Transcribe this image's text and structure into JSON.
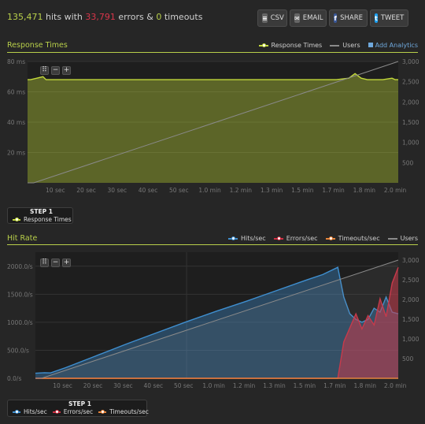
{
  "summary": {
    "hits": "135,471",
    "hits_label": "hits with",
    "errors": "33,791",
    "errors_label": "errors &",
    "timeouts": "0",
    "timeouts_label": "timeouts"
  },
  "toolbar": {
    "csv_label": "CSV",
    "email_label": "EMAIL",
    "share_label": "SHARE",
    "tweet_label": "TWEET"
  },
  "add_analytics_label": "Add Analytics",
  "colors": {
    "accent": "#b8cf4a",
    "response": "#c3d93a",
    "users": "#8a8a8a",
    "hits": "#3f8fd0",
    "errors": "#d02f42",
    "timeouts": "#e8843a"
  },
  "chart_data": [
    {
      "type": "area",
      "title": "Response Times",
      "x_ticks": [
        "10 sec",
        "20 sec",
        "30 sec",
        "40 sec",
        "50 sec",
        "1.0 min",
        "1.2 min",
        "1.3 min",
        "1.5 min",
        "1.7 min",
        "1.8 min",
        "2.0 min"
      ],
      "y_ticks": [
        "80 ms",
        "60 ms",
        "40 ms",
        "20 ms"
      ],
      "y2_ticks": [
        "3,000",
        "2,500",
        "2,000",
        "1,500",
        "1,000",
        "500"
      ],
      "ylim": [
        0,
        80
      ],
      "y2lim": [
        0,
        3000
      ],
      "xlim": [
        0,
        120
      ],
      "series": [
        {
          "name": "Response Times",
          "axis": "left",
          "x": [
            0,
            1,
            3,
            5,
            6,
            8,
            10,
            20,
            30,
            40,
            50,
            60,
            70,
            80,
            90,
            95,
            100,
            104,
            106,
            108,
            110,
            115,
            118,
            119,
            120
          ],
          "y": [
            68,
            68,
            69,
            70,
            68,
            68,
            68,
            68,
            68,
            68,
            68,
            68,
            68,
            68,
            68,
            68,
            68,
            69,
            72,
            69,
            68,
            68,
            69,
            68,
            68
          ]
        },
        {
          "name": "Users",
          "axis": "right",
          "x": [
            0,
            2,
            120
          ],
          "y": [
            0,
            0,
            3000
          ]
        }
      ],
      "step_label": "STEP 1",
      "step_series": [
        "Response Times"
      ]
    },
    {
      "type": "area",
      "title": "Hit Rate",
      "x_ticks": [
        "10 sec",
        "20 sec",
        "30 sec",
        "40 sec",
        "50 sec",
        "1.0 min",
        "1.2 min",
        "1.3 min",
        "1.5 min",
        "1.7 min",
        "1.8 min",
        "2.0 min"
      ],
      "y_ticks": [
        "2000.0/s",
        "1500.0/s",
        "1000.0/s",
        "500.0/s",
        "0.0/s"
      ],
      "y2_ticks": [
        "3,000",
        "2,500",
        "2,000",
        "1,500",
        "1,000",
        "500"
      ],
      "ylim": [
        0,
        2250
      ],
      "y2lim": [
        0,
        3200
      ],
      "xlim": [
        0,
        120
      ],
      "series": [
        {
          "name": "Hits/sec",
          "axis": "left",
          "x": [
            0,
            3,
            5,
            10,
            20,
            30,
            40,
            50,
            60,
            70,
            80,
            90,
            95,
            100,
            102,
            104,
            106,
            108,
            110,
            112,
            114,
            116,
            118,
            120
          ],
          "y": [
            90,
            100,
            95,
            190,
            400,
            610,
            810,
            1010,
            1200,
            1380,
            1570,
            1760,
            1850,
            1980,
            1450,
            1150,
            1050,
            1000,
            1050,
            1250,
            1180,
            1450,
            1180,
            1150
          ]
        },
        {
          "name": "Errors/sec",
          "axis": "left",
          "x": [
            0,
            98,
            100,
            102,
            104,
            106,
            108,
            110,
            112,
            114,
            116,
            118,
            120
          ],
          "y": [
            0,
            0,
            0,
            650,
            900,
            1150,
            880,
            1120,
            950,
            1420,
            1100,
            1700,
            1980
          ]
        },
        {
          "name": "Timeouts/sec",
          "axis": "left",
          "x": [
            0,
            120
          ],
          "y": [
            0,
            0
          ]
        },
        {
          "name": "Users",
          "axis": "right",
          "x": [
            0,
            2,
            120
          ],
          "y": [
            0,
            0,
            3000
          ]
        }
      ],
      "step_label": "STEP 1",
      "step_series": [
        "Hits/sec",
        "Errors/sec",
        "Timeouts/sec"
      ]
    }
  ]
}
